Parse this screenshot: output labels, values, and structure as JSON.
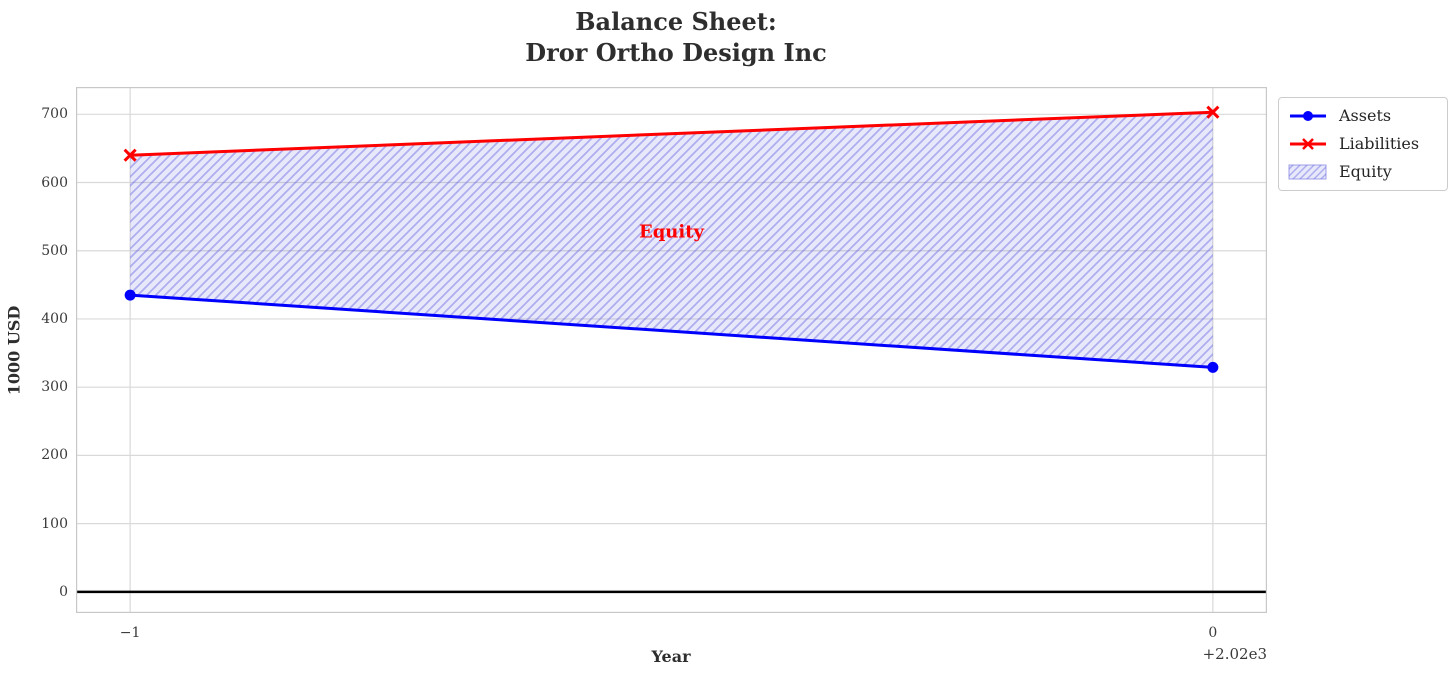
{
  "title": {
    "line1": "Balance Sheet:",
    "line2": "Dror Ortho Design Inc"
  },
  "chart_data": {
    "type": "line",
    "x_years": [
      2019,
      2020
    ],
    "x_plot": [
      -1,
      0
    ],
    "x_offset_text": "+2.02e3",
    "xticks": [
      {
        "value": -1,
        "label": "−1"
      },
      {
        "value": 0,
        "label": "0"
      }
    ],
    "yticks": [
      0,
      100,
      200,
      300,
      400,
      500,
      600,
      700
    ],
    "xlim": [
      -1.05,
      0.05
    ],
    "ylim": [
      -31,
      740
    ],
    "xlabel": "Year",
    "ylabel": "1000 USD",
    "grid": true,
    "zero_line": true,
    "series": [
      {
        "name": "Assets",
        "values": [
          435,
          329
        ],
        "color": "#0000ff",
        "marker": "circle",
        "line_width": 3
      },
      {
        "name": "Liabilities",
        "values": [
          640,
          703
        ],
        "color": "#ff0000",
        "marker": "x",
        "line_width": 3
      }
    ],
    "equity_band": {
      "label": "Equity",
      "between": [
        "Assets",
        "Liabilities"
      ],
      "annotation": {
        "text": "Equity",
        "x": -0.5,
        "y": 527,
        "color": "#ff0000"
      }
    },
    "legend": {
      "position": "upper-right-outside",
      "entries": [
        {
          "label": "Assets",
          "swatch": "line-circle",
          "color": "#0000ff"
        },
        {
          "label": "Liabilities",
          "swatch": "line-x",
          "color": "#ff0000"
        },
        {
          "label": "Equity",
          "swatch": "hatch-patch",
          "color": "#c8c8f4"
        }
      ]
    }
  },
  "colors": {
    "assets": "#0000ff",
    "liabilities": "#ff0000",
    "equity_fill": "rgba(90,90,230,0.14)",
    "equity_hatch": "rgba(100,100,225,0.45)",
    "grid": "#d9d9d9",
    "spine": "#c8c8c8",
    "zero_line": "#000000",
    "text": "#262626"
  }
}
